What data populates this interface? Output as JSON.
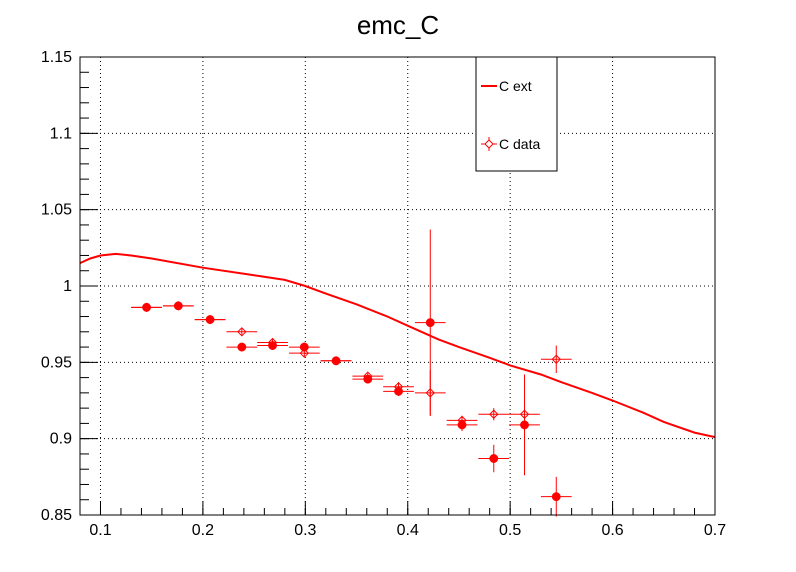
{
  "chart_data": {
    "type": "scatter",
    "title": "emc_C",
    "xlabel": "",
    "ylabel": "",
    "xlim": [
      0.08,
      0.7
    ],
    "ylim": [
      0.85,
      1.15
    ],
    "x_ticks": [
      0.1,
      0.2,
      0.3,
      0.4,
      0.5,
      0.6,
      0.7
    ],
    "x_tick_labels": [
      "0.1",
      "0.2",
      "0.3",
      "0.4",
      "0.5",
      "0.6",
      "0.7"
    ],
    "y_ticks": [
      0.85,
      0.9,
      0.95,
      1.0,
      1.05,
      1.1,
      1.15
    ],
    "y_tick_labels": [
      "0.85",
      "0.9",
      "0.95",
      "1",
      "1.05",
      "1.1",
      "1.15"
    ],
    "grid": true,
    "legend_position": "top-right",
    "colors": {
      "series": "#ff0000",
      "axis": "#000000",
      "grid": "#000000"
    },
    "series": [
      {
        "name": "C ext",
        "style": "line",
        "x": [
          0.08,
          0.09,
          0.1,
          0.115,
          0.13,
          0.15,
          0.2,
          0.25,
          0.28,
          0.3,
          0.32,
          0.35,
          0.38,
          0.4,
          0.43,
          0.45,
          0.48,
          0.5,
          0.53,
          0.55,
          0.58,
          0.6,
          0.63,
          0.65,
          0.68,
          0.7
        ],
        "y": [
          1.015,
          1.018,
          1.02,
          1.021,
          1.02,
          1.018,
          1.012,
          1.007,
          1.004,
          1.0,
          0.995,
          0.988,
          0.98,
          0.974,
          0.965,
          0.96,
          0.953,
          0.948,
          0.942,
          0.937,
          0.93,
          0.925,
          0.917,
          0.911,
          0.904,
          0.901
        ]
      },
      {
        "name": "C data",
        "style": "open-diamond",
        "points": [
          {
            "x": 0.145,
            "y": 0.986,
            "xerr": 0.015,
            "yerr": 0.002
          },
          {
            "x": 0.176,
            "y": 0.987,
            "xerr": 0.015,
            "yerr": 0.002
          },
          {
            "x": 0.207,
            "y": 0.978,
            "xerr": 0.015,
            "yerr": 0.002
          },
          {
            "x": 0.238,
            "y": 0.97,
            "xerr": 0.015,
            "yerr": 0.002
          },
          {
            "x": 0.268,
            "y": 0.963,
            "xerr": 0.015,
            "yerr": 0.002
          },
          {
            "x": 0.299,
            "y": 0.956,
            "xerr": 0.015,
            "yerr": 0.002
          },
          {
            "x": 0.33,
            "y": 0.951,
            "xerr": 0.015,
            "yerr": 0.002
          },
          {
            "x": 0.361,
            "y": 0.941,
            "xerr": 0.015,
            "yerr": 0.002
          },
          {
            "x": 0.391,
            "y": 0.934,
            "xerr": 0.015,
            "yerr": 0.003
          },
          {
            "x": 0.422,
            "y": 0.93,
            "xerr": 0.015,
            "yerr": 0.015
          },
          {
            "x": 0.453,
            "y": 0.912,
            "xerr": 0.015,
            "yerr": 0.003
          },
          {
            "x": 0.484,
            "y": 0.916,
            "xerr": 0.015,
            "yerr": 0.004
          },
          {
            "x": 0.514,
            "y": 0.916,
            "xerr": 0.015,
            "yerr": 0.026
          },
          {
            "x": 0.545,
            "y": 0.952,
            "xerr": 0.015,
            "yerr": 0.009
          }
        ]
      },
      {
        "name": "",
        "style": "filled-circle",
        "points": [
          {
            "x": 0.145,
            "y": 0.986,
            "xerr": 0.015,
            "yerr": 0.002
          },
          {
            "x": 0.176,
            "y": 0.987,
            "xerr": 0.015,
            "yerr": 0.002
          },
          {
            "x": 0.207,
            "y": 0.978,
            "xerr": 0.015,
            "yerr": 0.002
          },
          {
            "x": 0.238,
            "y": 0.96,
            "xerr": 0.015,
            "yerr": 0.002
          },
          {
            "x": 0.268,
            "y": 0.961,
            "xerr": 0.015,
            "yerr": 0.002
          },
          {
            "x": 0.299,
            "y": 0.96,
            "xerr": 0.015,
            "yerr": 0.003
          },
          {
            "x": 0.33,
            "y": 0.951,
            "xerr": 0.015,
            "yerr": 0.002
          },
          {
            "x": 0.361,
            "y": 0.939,
            "xerr": 0.015,
            "yerr": 0.002
          },
          {
            "x": 0.391,
            "y": 0.931,
            "xerr": 0.015,
            "yerr": 0.003
          },
          {
            "x": 0.422,
            "y": 0.976,
            "xerr": 0.015,
            "yerr": 0.061
          },
          {
            "x": 0.453,
            "y": 0.909,
            "xerr": 0.015,
            "yerr": 0.004
          },
          {
            "x": 0.484,
            "y": 0.887,
            "xerr": 0.015,
            "yerr": 0.009
          },
          {
            "x": 0.514,
            "y": 0.909,
            "xerr": 0.015,
            "yerr": 0.033
          },
          {
            "x": 0.545,
            "y": 0.862,
            "xerr": 0.015,
            "yerr": 0.013
          }
        ]
      }
    ]
  }
}
